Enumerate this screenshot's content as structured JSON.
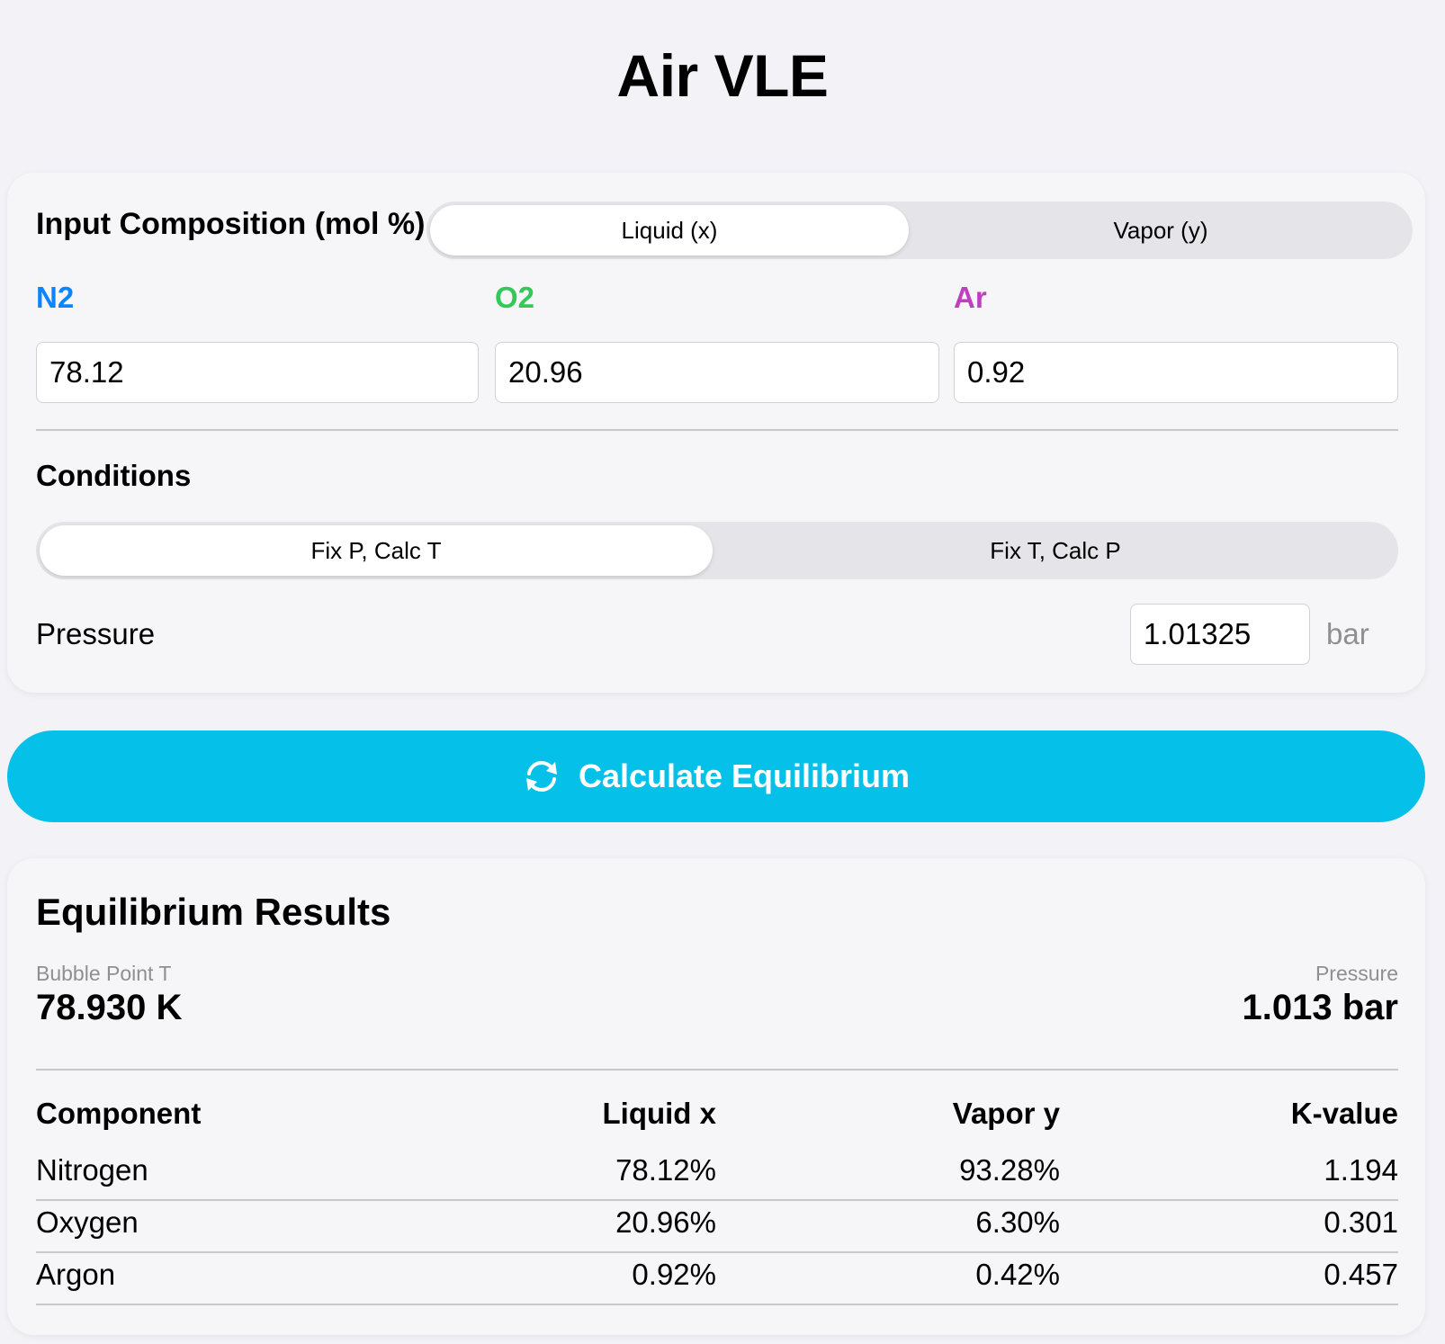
{
  "title": "Air VLE",
  "input": {
    "heading": "Input Composition (mol %)",
    "phase_toggle": {
      "options": [
        "Liquid (x)",
        "Vapor (y)"
      ],
      "selected": "Liquid (x)"
    },
    "components": [
      {
        "label": "N2",
        "value": "78.12",
        "color": "#0a84ff"
      },
      {
        "label": "O2",
        "value": "20.96",
        "color": "#34c759"
      },
      {
        "label": "Ar",
        "value": "0.92",
        "color": "#bf40bf"
      }
    ],
    "conditions_heading": "Conditions",
    "mode_toggle": {
      "options": [
        "Fix P, Calc T",
        "Fix T, Calc P"
      ],
      "selected": "Fix P, Calc T"
    },
    "pressure_label": "Pressure",
    "pressure_value": "1.01325",
    "pressure_unit": "bar"
  },
  "calculate_button": {
    "label": "Calculate Equilibrium",
    "icon": "refresh-icon",
    "color": "#05c0e8"
  },
  "results": {
    "heading": "Equilibrium Results",
    "bubble_label": "Bubble Point T",
    "bubble_value": "78.930 K",
    "pressure_label": "Pressure",
    "pressure_value": "1.013 bar",
    "columns": [
      "Component",
      "Liquid x",
      "Vapor y",
      "K-value"
    ],
    "rows": [
      {
        "component": "Nitrogen",
        "liquid": "78.12%",
        "vapor": "93.28%",
        "k": "1.194"
      },
      {
        "component": "Oxygen",
        "liquid": "20.96%",
        "vapor": "6.30%",
        "k": "0.301"
      },
      {
        "component": "Argon",
        "liquid": "0.92%",
        "vapor": "0.42%",
        "k": "0.457"
      }
    ]
  }
}
